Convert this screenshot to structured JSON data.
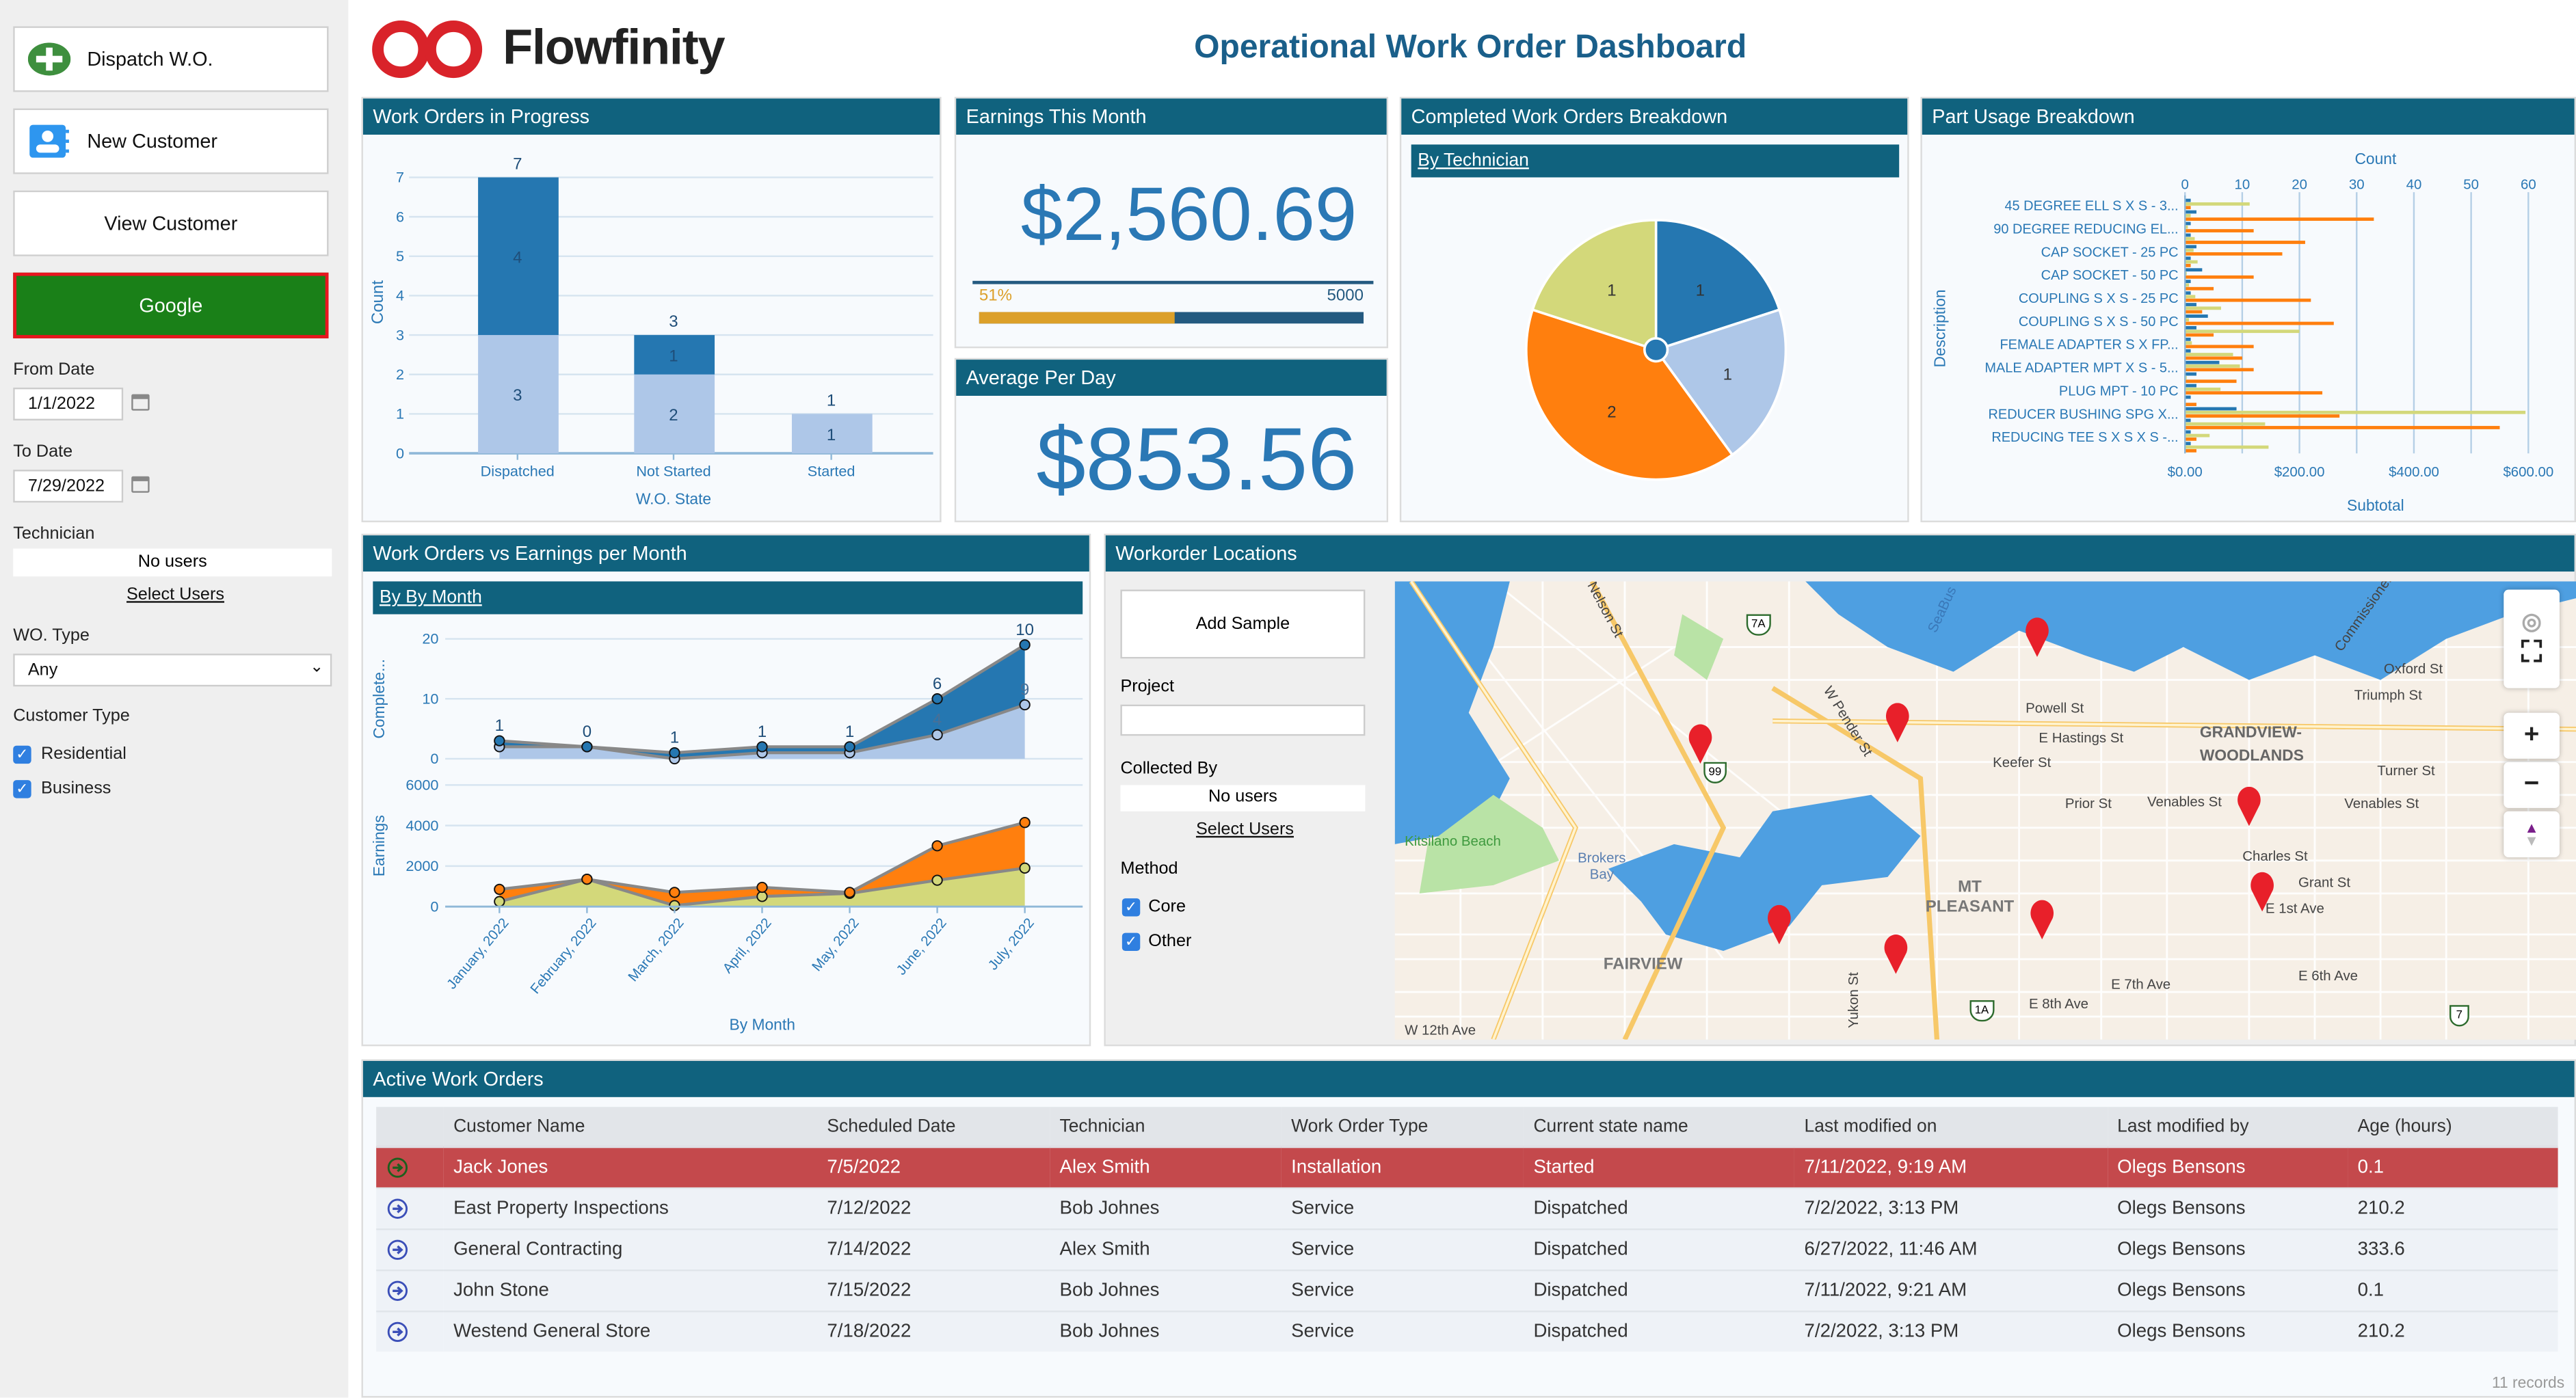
{
  "sidebar": {
    "dispatch_label": "Dispatch W.O.",
    "new_customer_label": "New Customer",
    "view_customer_label": "View Customer",
    "google_label": "Google",
    "from_date_label": "From Date",
    "from_date_value": "1/1/2022",
    "to_date_label": "To Date",
    "to_date_value": "7/29/2022",
    "technician_label": "Technician",
    "technician_value": "No users",
    "select_users_label": "Select Users",
    "wo_type_label": "WO. Type",
    "wo_type_value": "Any",
    "customer_type_label": "Customer Type",
    "customer_types": [
      {
        "label": "Residential",
        "checked": true
      },
      {
        "label": "Business",
        "checked": true
      }
    ]
  },
  "header": {
    "logo_text": "Flowfinity",
    "title": "Operational Work Order Dashboard"
  },
  "colors": {
    "header": "#10627e",
    "dark_blue": "#2577b1",
    "light_blue": "#aec7e8",
    "orange": "#ff7f0e",
    "yellow_green": "#d3d87a",
    "accent_text": "#2a78b5",
    "progress_fill": "#dca02a",
    "progress_track": "#245a80",
    "selected_row": "#c4494c",
    "google_button": "#1a8018"
  },
  "panels": {
    "wo_progress": {
      "title": "Work Orders in Progress"
    },
    "earnings_month": {
      "title": "Earnings This Month",
      "value": "$2,560.69",
      "progress_percent_label": "51%",
      "progress_fraction": 0.51,
      "target": "5000"
    },
    "avg_day": {
      "title": "Average Per Day",
      "value": "$853.56"
    },
    "completed": {
      "title": "Completed Work Orders Breakdown",
      "subheader": "By Technician"
    },
    "part_usage": {
      "title": "Part Usage Breakdown"
    },
    "wo_vs_earnings": {
      "title": "Work Orders vs Earnings per Month",
      "subheader": "By By Month"
    },
    "locations": {
      "title": "Workorder Locations",
      "add_sample_label": "Add Sample",
      "project_label": "Project",
      "project_value": "",
      "collected_by_label": "Collected By",
      "collected_by_value": "No users",
      "select_users_label": "Select Users",
      "method_label": "Method",
      "methods": [
        {
          "label": "Core",
          "checked": true
        },
        {
          "label": "Other",
          "checked": true
        }
      ]
    },
    "active": {
      "title": "Active Work Orders",
      "records": "11 records"
    }
  },
  "chart_data": [
    {
      "type": "bar",
      "stacked": true,
      "categories": [
        "Dispatched",
        "Not Started",
        "Started"
      ],
      "series": [
        {
          "values": [
            3,
            2,
            1
          ],
          "color": "#aec7e8"
        },
        {
          "values": [
            4,
            1,
            0
          ],
          "color": "#2577b1"
        }
      ],
      "totals": [
        7,
        3,
        1
      ],
      "xlabel": "W.O. State",
      "ylabel": "Count",
      "ylim": [
        0,
        7
      ],
      "yticks": [
        "0",
        "1",
        "2",
        "3",
        "4",
        "5",
        "6",
        "7"
      ],
      "grid": true
    },
    {
      "type": "pie",
      "slices": [
        {
          "value": 1,
          "color": "#2577b1"
        },
        {
          "value": 1,
          "color": "#aec7e8"
        },
        {
          "value": 2,
          "color": "#ff7f0e"
        },
        {
          "value": 1,
          "color": "#d3d87a"
        }
      ]
    },
    {
      "type": "bar",
      "orientation": "horizontal",
      "categories": [
        "45 DEGREE ELL S X S - 3...",
        "90 DEGREE REDUCING EL...",
        "CAP SOCKET - 25 PC",
        "CAP SOCKET - 50 PC",
        "COUPLING S X S - 25 PC",
        "COUPLING S X S - 50 PC",
        "FEMALE ADAPTER S X FP...",
        "MALE ADAPTER MPT X S - 5...",
        "PLUG MPT - 10 PC",
        "REDUCER BUSHING SPG X...",
        "REDUCING TEE S X S X S -..."
      ],
      "count": [
        1,
        2,
        1,
        1,
        2,
        1,
        3,
        1,
        1,
        2,
        4,
        2,
        1,
        1,
        6,
        2,
        2,
        1,
        9,
        1,
        1,
        1
      ],
      "subtotal_a": [
        113,
        10,
        5,
        17,
        15,
        22,
        3,
        7,
        18,
        63,
        7,
        200,
        12,
        84,
        96,
        3,
        62,
        0,
        595,
        140,
        43,
        146
      ],
      "subtotal_b": [
        10,
        330,
        120,
        210,
        170,
        10,
        120,
        50,
        220,
        30,
        260,
        50,
        120,
        100,
        120,
        90,
        240,
        20,
        270,
        550,
        20,
        20
      ],
      "xlabel_top": "Count",
      "xticks_top": [
        "0",
        "10",
        "20",
        "30",
        "40",
        "50",
        "60"
      ],
      "xlim_top": [
        0,
        60
      ],
      "xlabel_bottom": "Subtotal",
      "xticks_bottom": [
        "$0.00",
        "$200.00",
        "$400.00",
        "$600.00"
      ],
      "xlim_bottom": [
        0,
        600
      ],
      "ylabel": "Description",
      "grid": true
    },
    {
      "type": "area",
      "stacked": true,
      "categories": [
        "January, 2022",
        "February, 2022",
        "March, 2022",
        "April, 2022",
        "May, 2022",
        "June, 2022",
        "July, 2022"
      ],
      "xlabel": "By Month",
      "top_chart": {
        "ylabel": "Complete...",
        "ylim": [
          0,
          20
        ],
        "yticks": [
          "0",
          "10",
          "20"
        ],
        "series": [
          {
            "values": [
              2,
              2,
              0,
              1,
              1,
              4,
              9
            ],
            "color": "#aec7e8"
          },
          {
            "values": [
              1,
              0,
              1,
              1,
              1,
              6,
              10
            ],
            "color": "#2577b1"
          }
        ]
      },
      "bottom_chart": {
        "ylabel": "Earnings",
        "ylim": [
          0,
          6000
        ],
        "yticks": [
          "0",
          "2000",
          "4000",
          "6000"
        ],
        "series": [
          {
            "values": [
              250,
              1350,
              50,
              500,
              650,
              1300,
              1900
            ],
            "color": "#d3d87a"
          },
          {
            "values": [
              600,
              0,
              650,
              450,
              50,
              1700,
              2250
            ],
            "color": "#ff7f0e"
          }
        ]
      }
    }
  ],
  "map": {
    "labels": [
      "Nelson St",
      "SeaBus",
      "Powell St",
      "E Hastings St",
      "Keefer St",
      "GRANDVIEW-",
      "WOODLANDS",
      "Oxford St",
      "Triumph St",
      "Turner St",
      "Prior St",
      "Venables St",
      "Venables St",
      "W Pender St",
      "Kitsilano Beach",
      "Brokers Bay",
      "Charles St",
      "Grant St",
      "E 1st Ave",
      "MT PLEASANT",
      "FAIRVIEW",
      "E 6th Ave",
      "E 7th Ave",
      "E 8th Ave",
      "W 12th Ave",
      "Yukon St",
      "Commissioner St"
    ],
    "shields": [
      "7A",
      "99",
      "1A",
      "7"
    ],
    "pin_count": 8
  },
  "table": {
    "columns": [
      "Customer Name",
      "Scheduled Date",
      "Technician",
      "Work Order Type",
      "Current state name",
      "Last modified on",
      "Last modified by",
      "Age (hours)"
    ],
    "rows": [
      [
        "Jack Jones",
        "7/5/2022",
        "Alex Smith",
        "Installation",
        "Started",
        "7/11/2022, 9:19 AM",
        "Olegs Bensons",
        "0.1"
      ],
      [
        "East Property Inspections",
        "7/12/2022",
        "Bob Johnes",
        "Service",
        "Dispatched",
        "7/2/2022, 3:13 PM",
        "Olegs Bensons",
        "210.2"
      ],
      [
        "General Contracting",
        "7/14/2022",
        "Alex Smith",
        "Service",
        "Dispatched",
        "6/27/2022, 11:46 AM",
        "Olegs Bensons",
        "333.6"
      ],
      [
        "John Stone",
        "7/15/2022",
        "Bob Johnes",
        "Service",
        "Dispatched",
        "7/11/2022, 9:21 AM",
        "Olegs Bensons",
        "0.1"
      ],
      [
        "Westend General Store",
        "7/18/2022",
        "Bob Johnes",
        "Service",
        "Dispatched",
        "7/2/2022, 3:13 PM",
        "Olegs Bensons",
        "210.2"
      ]
    ],
    "selected_row": 0
  }
}
